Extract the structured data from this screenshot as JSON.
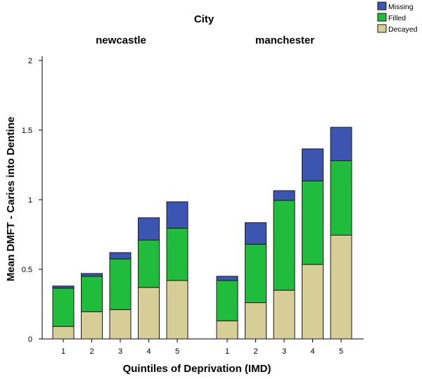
{
  "chart_data": {
    "type": "bar",
    "stacked": true,
    "super_title": "City",
    "panels": [
      {
        "title": "newcastle",
        "categories": [
          "1",
          "2",
          "3",
          "4",
          "5"
        ],
        "series": [
          {
            "name": "Decayed",
            "values": [
              0.09,
              0.195,
              0.21,
              0.37,
              0.42
            ]
          },
          {
            "name": "Filled",
            "values": [
              0.275,
              0.255,
              0.365,
              0.34,
              0.375
            ]
          },
          {
            "name": "Missing",
            "values": [
              0.015,
              0.02,
              0.045,
              0.16,
              0.19
            ]
          }
        ]
      },
      {
        "title": "manchester",
        "categories": [
          "1",
          "2",
          "3",
          "4",
          "5"
        ],
        "series": [
          {
            "name": "Decayed",
            "values": [
              0.13,
              0.26,
              0.35,
              0.535,
              0.745
            ]
          },
          {
            "name": "Filled",
            "values": [
              0.29,
              0.42,
              0.645,
              0.6,
              0.535
            ]
          },
          {
            "name": "Missing",
            "values": [
              0.03,
              0.155,
              0.07,
              0.23,
              0.24
            ]
          }
        ]
      }
    ],
    "xlabel": "Quintiles of Deprivation (IMD)",
    "ylabel": "Mean DMFT - Caries into Dentine",
    "ylim": [
      0,
      2
    ],
    "yticks": [
      "0",
      "0.5",
      "1",
      "1.5",
      "2"
    ],
    "legend": {
      "placement": "top-right",
      "entries": [
        "Missing",
        "Filled",
        "Decayed"
      ]
    },
    "colors": {
      "Decayed": "#d6cd97",
      "Filled": "#1fbd3b",
      "Missing": "#3b55b0",
      "bar_stroke": "#1a1a1a"
    },
    "grid": false
  }
}
